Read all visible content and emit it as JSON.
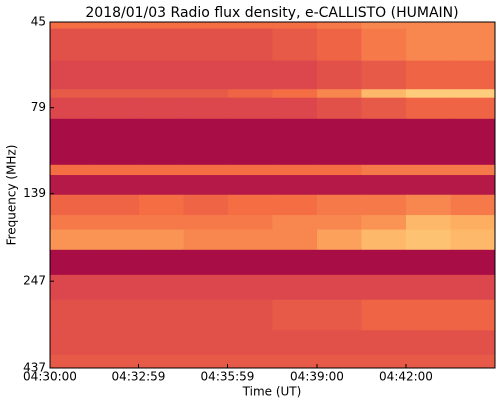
{
  "chart_data": {
    "type": "heatmap",
    "title": "2018/01/03  Radio flux density, e-CALLISTO (HUMAIN)",
    "xlabel": "Time (UT)",
    "ylabel": "Frequency (MHz)",
    "xlim": [
      "04:30:00",
      "04:45:00"
    ],
    "xticks": [
      "04:30:00",
      "04:32:59",
      "04:35:59",
      "04:39:00",
      "04:42:00"
    ],
    "ylim": [
      45,
      437
    ],
    "yticks": [
      45,
      79,
      139,
      247,
      437
    ],
    "yscale": "log",
    "y_inverted": true,
    "x_bins": [
      "04:30:00",
      "04:31:30",
      "04:33:00",
      "04:34:30",
      "04:36:00",
      "04:37:30",
      "04:39:00",
      "04:40:30",
      "04:42:00",
      "04:43:30",
      "04:45:00"
    ],
    "y_bins": [
      45,
      47,
      58,
      70,
      74,
      85,
      115,
      123,
      140,
      160,
      176,
      201,
      237,
      279,
      341,
      401,
      437
    ],
    "zlim": [
      0,
      1
    ],
    "colormap": [
      "#9e0142",
      "#d53e4f",
      "#f46d43",
      "#fdae61",
      "#fee08b"
    ],
    "z": [
      [
        0.5,
        0.5,
        0.5,
        0.5,
        0.5,
        0.5,
        0.55,
        0.6,
        0.6,
        0.6
      ],
      [
        0.35,
        0.35,
        0.35,
        0.35,
        0.35,
        0.4,
        0.45,
        0.55,
        0.6,
        0.6
      ],
      [
        0.3,
        0.3,
        0.3,
        0.3,
        0.3,
        0.3,
        0.35,
        0.4,
        0.45,
        0.45
      ],
      [
        0.4,
        0.4,
        0.4,
        0.4,
        0.45,
        0.5,
        0.6,
        0.8,
        0.9,
        0.9
      ],
      [
        0.3,
        0.3,
        0.3,
        0.3,
        0.3,
        0.3,
        0.35,
        0.4,
        0.45,
        0.45
      ],
      [
        0.05,
        0.05,
        0.05,
        0.05,
        0.05,
        0.05,
        0.05,
        0.05,
        0.05,
        0.05
      ],
      [
        0.5,
        0.5,
        0.5,
        0.5,
        0.5,
        0.5,
        0.5,
        0.55,
        0.55,
        0.55
      ],
      [
        0.1,
        0.1,
        0.1,
        0.1,
        0.1,
        0.1,
        0.1,
        0.1,
        0.1,
        0.1
      ],
      [
        0.45,
        0.45,
        0.5,
        0.45,
        0.5,
        0.5,
        0.55,
        0.55,
        0.6,
        0.55
      ],
      [
        0.55,
        0.55,
        0.55,
        0.55,
        0.55,
        0.6,
        0.6,
        0.65,
        0.8,
        0.75
      ],
      [
        0.65,
        0.65,
        0.65,
        0.6,
        0.6,
        0.6,
        0.7,
        0.8,
        0.85,
        0.8
      ],
      [
        0.05,
        0.05,
        0.05,
        0.05,
        0.05,
        0.05,
        0.05,
        0.05,
        0.05,
        0.05
      ],
      [
        0.3,
        0.3,
        0.3,
        0.3,
        0.3,
        0.3,
        0.3,
        0.3,
        0.3,
        0.3
      ],
      [
        0.35,
        0.35,
        0.35,
        0.35,
        0.35,
        0.4,
        0.4,
        0.45,
        0.45,
        0.45
      ],
      [
        0.35,
        0.35,
        0.35,
        0.35,
        0.35,
        0.35,
        0.35,
        0.35,
        0.35,
        0.35
      ],
      [
        0.4,
        0.4,
        0.4,
        0.4,
        0.4,
        0.4,
        0.4,
        0.4,
        0.4,
        0.4
      ]
    ]
  }
}
